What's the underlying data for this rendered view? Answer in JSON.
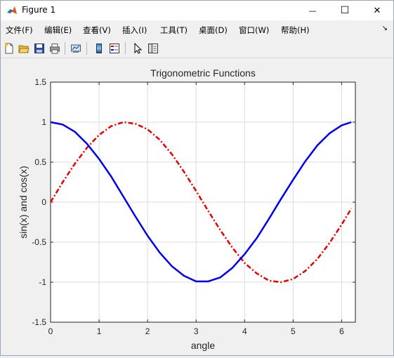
{
  "window": {
    "title": "Figure 1",
    "minimize_glyph": "—",
    "maximize_glyph": "☐",
    "close_glyph": "✕"
  },
  "menu": {
    "items": [
      "文件(F)",
      "编辑(E)",
      "查看(V)",
      "插入(I)",
      "工具(T)",
      "桌面(D)",
      "窗口(W)",
      "帮助(H)"
    ],
    "overflow_glyph": "↘"
  },
  "toolbar": {
    "icons": [
      "new-figure-icon",
      "open-file-icon",
      "save-icon",
      "print-icon",
      "link-plot-icon",
      "colorbar-icon",
      "legend-icon",
      "pointer-icon",
      "property-editor-icon"
    ]
  },
  "colors": {
    "sin": "#e60000",
    "cos": "#0000f0",
    "grid": "#dcdcdc",
    "axes_bg": "#ffffff"
  },
  "chart_data": {
    "type": "line",
    "title": "Trigonometric Functions",
    "xlabel": "angle",
    "ylabel": "sin(x) and cos(x)",
    "xlim": [
      0,
      6.2832
    ],
    "ylim": [
      -1.5,
      1.5
    ],
    "xticks": [
      "0",
      "1",
      "2",
      "3",
      "4",
      "5",
      "6"
    ],
    "yticks": [
      "-1.5",
      "-1",
      "-0.5",
      "0",
      "0.5",
      "1",
      "1.5"
    ],
    "grid": true,
    "series": [
      {
        "function": "sin",
        "style": "dash-dot",
        "x": [
          0,
          0.25,
          0.5,
          0.75,
          1,
          1.25,
          1.5,
          1.75,
          2,
          2.25,
          2.5,
          2.75,
          3,
          3.25,
          3.5,
          3.75,
          4,
          4.25,
          4.5,
          4.75,
          5,
          5.25,
          5.5,
          5.75,
          6,
          6.2
        ],
        "values": [
          0,
          0.25,
          0.48,
          0.68,
          0.84,
          0.95,
          1.0,
          0.98,
          0.91,
          0.78,
          0.6,
          0.38,
          0.14,
          -0.11,
          -0.35,
          -0.57,
          -0.76,
          -0.89,
          -0.98,
          -1.0,
          -0.96,
          -0.86,
          -0.71,
          -0.51,
          -0.28,
          -0.08
        ]
      },
      {
        "function": "cos",
        "style": "solid",
        "x": [
          0,
          0.25,
          0.5,
          0.75,
          1,
          1.25,
          1.5,
          1.75,
          2,
          2.25,
          2.5,
          2.75,
          3,
          3.25,
          3.5,
          3.75,
          4,
          4.25,
          4.5,
          4.75,
          5,
          5.25,
          5.5,
          5.75,
          6,
          6.2
        ],
        "values": [
          1.0,
          0.97,
          0.88,
          0.73,
          0.54,
          0.32,
          0.07,
          -0.18,
          -0.42,
          -0.63,
          -0.8,
          -0.92,
          -0.99,
          -0.99,
          -0.94,
          -0.82,
          -0.65,
          -0.45,
          -0.21,
          0.04,
          0.28,
          0.51,
          0.71,
          0.86,
          0.96,
          1.0
        ]
      }
    ]
  }
}
